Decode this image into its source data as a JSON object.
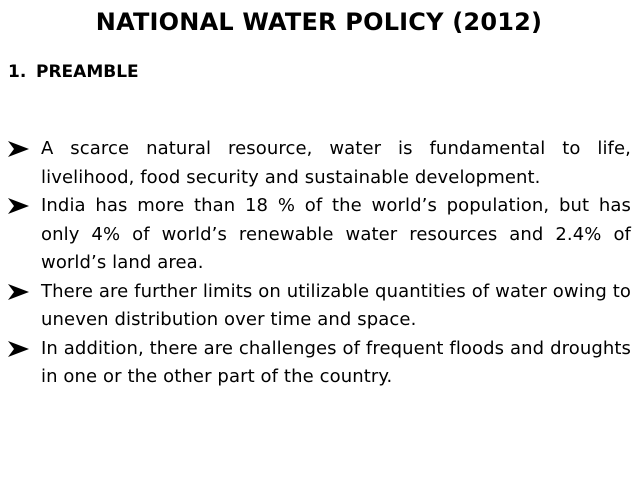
{
  "slide": {
    "title": "NATIONAL WATER POLICY (2012)",
    "section": {
      "number": "1.",
      "heading": "PREAMBLE"
    },
    "bullets": [
      "A scarce natural resource, water is fundamental to life, livelihood, food security and sustainable development.",
      "India has more than 18 % of the world’s population, but has only 4% of world’s renewable water resources and 2.4% of world’s land area.",
      "There are further limits on utilizable quantities of water owing to uneven distribution over time and space.",
      "In addition, there are challenges of frequent floods and droughts in one or the other part of the country."
    ],
    "bullet_icon": "arrowhead-bullet-icon"
  }
}
